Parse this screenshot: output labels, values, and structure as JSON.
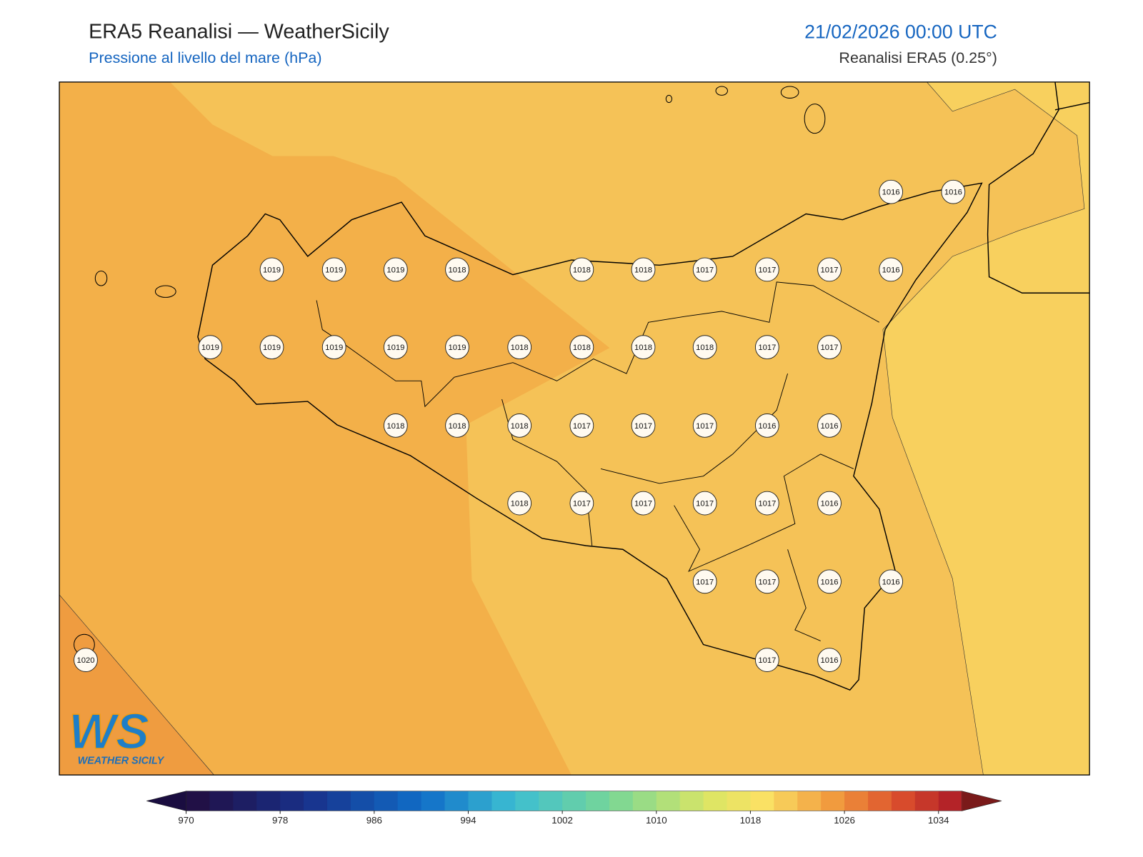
{
  "header": {
    "title": "ERA5 Reanalisi — WeatherSicily",
    "subtitle": "Pressione al livello del mare (hPa)",
    "date": "21/02/2026 00:00 UTC",
    "source": "Reanalisi ERA5 (0.25°)"
  },
  "stations": [
    1016,
    1016,
    1019,
    1019,
    1019,
    1018,
    1018,
    1018,
    1017,
    1017,
    1017,
    1016,
    1019,
    1019,
    1019,
    1019,
    1019,
    1018,
    1018,
    1018,
    1018,
    1017,
    1017,
    1018,
    1018,
    1018,
    1017,
    1017,
    1017,
    1016,
    1016,
    1018,
    1017,
    1017,
    1017,
    1017,
    1016,
    1017,
    1017,
    1016,
    1016,
    1017,
    1016,
    1020
  ],
  "colorbar": {
    "lim": [
      970,
      1036
    ],
    "ticks": [
      970,
      978,
      986,
      994,
      1002,
      1010,
      1018,
      1026,
      1034
    ]
  },
  "logo": {
    "mark": "WS",
    "name": "WEATHER SICILY"
  }
}
